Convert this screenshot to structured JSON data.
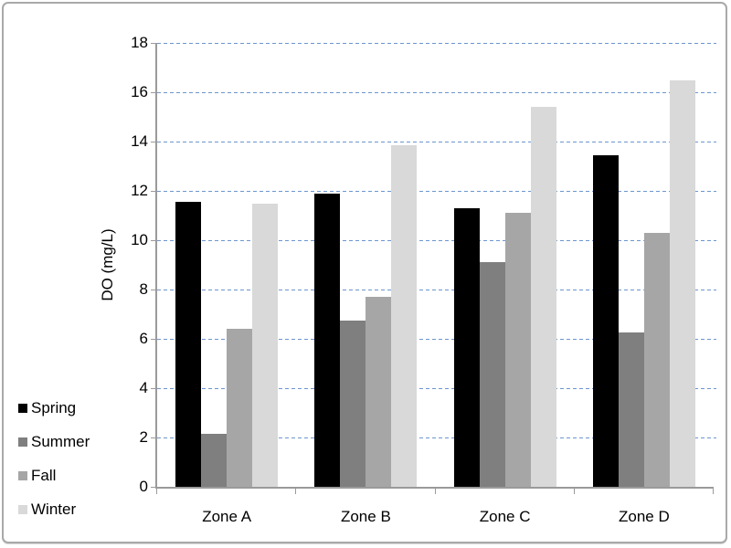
{
  "chart_data": {
    "type": "bar",
    "title": "",
    "ylabel": "DO (mg/L)",
    "xlabel": "",
    "categories": [
      "Zone A",
      "Zone B",
      "Zone C",
      "Zone D"
    ],
    "series": [
      {
        "name": "Spring",
        "color": "#000000",
        "values": [
          11.55,
          11.9,
          11.3,
          13.45
        ]
      },
      {
        "name": "Summer",
        "color": "#7f7f7f",
        "values": [
          2.15,
          6.75,
          9.1,
          6.25
        ]
      },
      {
        "name": "Fall",
        "color": "#a6a6a6",
        "values": [
          6.4,
          7.7,
          11.1,
          10.3
        ]
      },
      {
        "name": "Winter",
        "color": "#d9d9d9",
        "values": [
          11.5,
          13.85,
          15.4,
          16.5
        ]
      }
    ],
    "ylim": [
      0,
      18
    ],
    "ytick_step": 2,
    "yticks": [
      0,
      2,
      4,
      6,
      8,
      10,
      12,
      14,
      16,
      18
    ],
    "grid": "horizontal-dashed",
    "gridline_color": "#6b96cf",
    "axis_color": "#9a9a9a",
    "legend_position": "left-bottom",
    "legend_order": [
      "Spring",
      "Summer",
      "Fall",
      "Winter"
    ]
  }
}
